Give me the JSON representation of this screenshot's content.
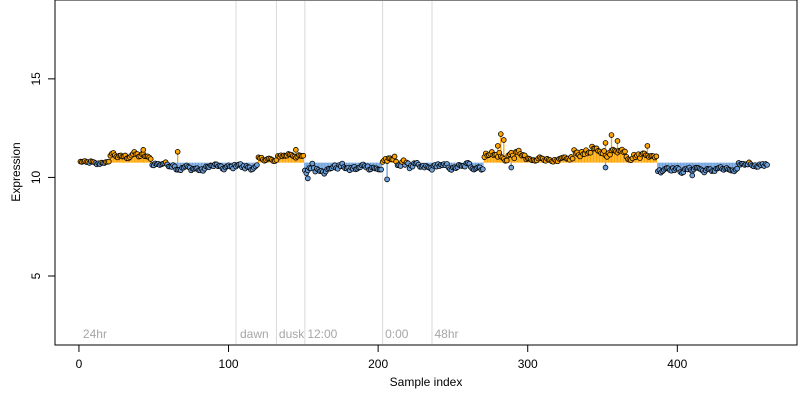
{
  "chart_data": {
    "type": "scatter",
    "title": "",
    "xlabel": "Sample index",
    "ylabel": "Expression",
    "xlim": [
      -16,
      480
    ],
    "ylim": [
      1.5,
      19
    ],
    "baseline": 10.75,
    "x_ticks": [
      0,
      100,
      200,
      300,
      400
    ],
    "x_tick_labels": [
      "0",
      "100",
      "200",
      "300",
      "400"
    ],
    "y_ticks": [
      5,
      10,
      15
    ],
    "y_tick_labels": [
      "5",
      "10",
      "15"
    ],
    "section_lines": [
      105,
      132,
      151,
      203,
      236
    ],
    "section_labels": [
      {
        "x": 2,
        "text": "24hr"
      },
      {
        "x": 107,
        "text": "dawn"
      },
      {
        "x": 133,
        "text": "dusk"
      },
      {
        "x": 152,
        "text": "12:00"
      },
      {
        "x": 204,
        "text": "0:00"
      },
      {
        "x": 237,
        "text": "48hr"
      }
    ],
    "colors": {
      "above": "#ffa500",
      "below": "#6ca0dc",
      "point_stroke": "#000000",
      "section_line": "#d9d9d9",
      "section_label": "#a6a6a6"
    },
    "segments": [
      {
        "x0": 1,
        "x1": 20,
        "level": 10.75,
        "amp": 0.12
      },
      {
        "x0": 21,
        "x1": 48,
        "level": 11.1,
        "amp": 0.2
      },
      {
        "x0": 49,
        "x1": 64,
        "level": 10.65,
        "amp": 0.15
      },
      {
        "x0": 65,
        "x1": 86,
        "level": 10.45,
        "amp": 0.18
      },
      {
        "x0": 87,
        "x1": 104,
        "level": 10.55,
        "amp": 0.2
      },
      {
        "x0": 105,
        "x1": 119,
        "level": 10.55,
        "amp": 0.22
      },
      {
        "x0": 120,
        "x1": 132,
        "level": 10.9,
        "amp": 0.15
      },
      {
        "x0": 133,
        "x1": 150,
        "level": 11.1,
        "amp": 0.15
      },
      {
        "x0": 151,
        "x1": 165,
        "level": 10.4,
        "amp": 0.35
      },
      {
        "x0": 166,
        "x1": 202,
        "level": 10.5,
        "amp": 0.22
      },
      {
        "x0": 203,
        "x1": 220,
        "level": 10.8,
        "amp": 0.35
      },
      {
        "x0": 221,
        "x1": 236,
        "level": 10.55,
        "amp": 0.2
      },
      {
        "x0": 237,
        "x1": 270,
        "level": 10.55,
        "amp": 0.22
      },
      {
        "x0": 271,
        "x1": 300,
        "level": 11.1,
        "amp": 0.35
      },
      {
        "x0": 301,
        "x1": 330,
        "level": 10.9,
        "amp": 0.2
      },
      {
        "x0": 331,
        "x1": 365,
        "level": 11.3,
        "amp": 0.3
      },
      {
        "x0": 366,
        "x1": 386,
        "level": 11.1,
        "amp": 0.25
      },
      {
        "x0": 387,
        "x1": 440,
        "level": 10.4,
        "amp": 0.18
      },
      {
        "x0": 441,
        "x1": 460,
        "level": 10.65,
        "amp": 0.15
      }
    ],
    "spikes": [
      {
        "x": 282,
        "y": 12.2
      },
      {
        "x": 284,
        "y": 11.9
      },
      {
        "x": 280,
        "y": 11.6
      },
      {
        "x": 356,
        "y": 12.15
      },
      {
        "x": 352,
        "y": 11.75
      },
      {
        "x": 360,
        "y": 11.85
      },
      {
        "x": 206,
        "y": 9.9
      },
      {
        "x": 153,
        "y": 9.95
      },
      {
        "x": 43,
        "y": 11.4
      },
      {
        "x": 66,
        "y": 11.3
      },
      {
        "x": 145,
        "y": 11.4
      },
      {
        "x": 380,
        "y": 11.6
      },
      {
        "x": 410,
        "y": 10.1
      },
      {
        "x": 289,
        "y": 10.5
      },
      {
        "x": 352,
        "y": 10.5
      }
    ]
  }
}
